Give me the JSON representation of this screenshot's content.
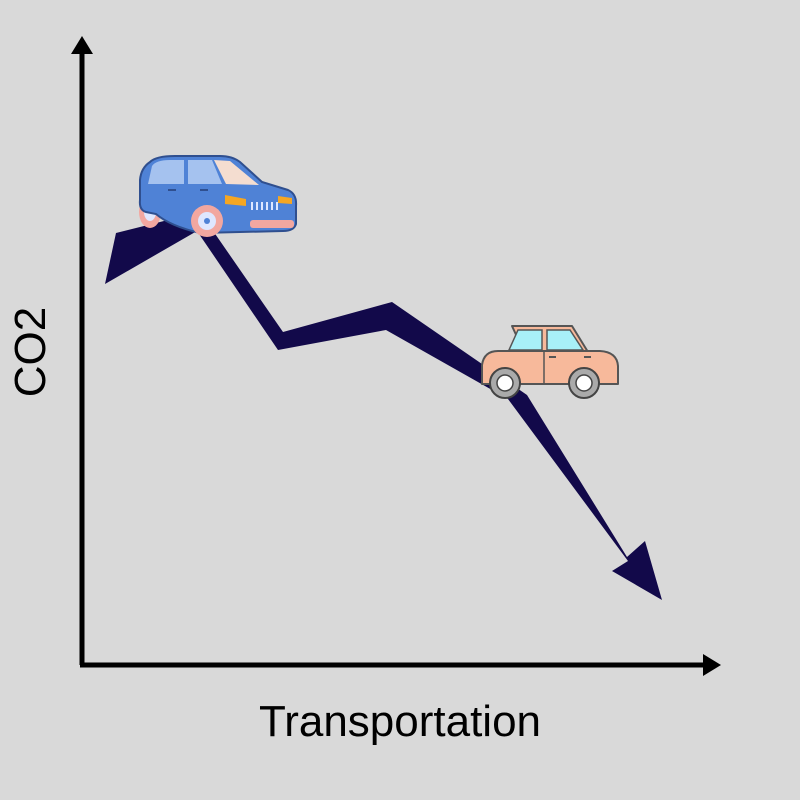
{
  "colors": {
    "background": "#d9d9d9",
    "axes": "#000000",
    "trend_arrow": "#12094a",
    "suv_body": "#4f82d6",
    "suv_trim": "#f2a7a0",
    "car_body": "#f7b99b",
    "car_window": "#a8f0f8"
  },
  "axes": {
    "x_label": "Transportation",
    "y_label": "CO2"
  },
  "icons": {
    "start_vehicle": "suv-icon",
    "end_vehicle": "car-icon",
    "trend": "downward-zigzag-arrow-icon"
  }
}
